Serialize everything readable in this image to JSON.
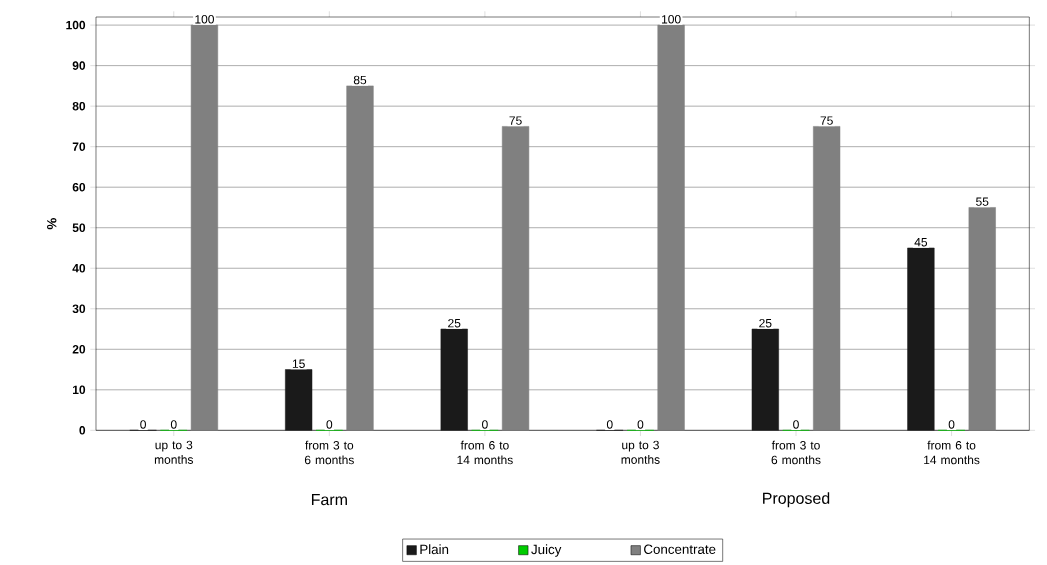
{
  "chart_data": {
    "type": "bar",
    "ylabel": "%",
    "categories": [
      "up to 3 months",
      "from 3 to 6 months",
      "from 6 to 14 months",
      "up to 3 months",
      "from 3 to 6 months",
      "from 6 to 14 months"
    ],
    "series": [
      {
        "name": "Plain",
        "color": "#1a1a1a",
        "values": [
          0,
          15,
          25,
          0,
          25,
          45
        ]
      },
      {
        "name": "Juicy",
        "color": "#00cc00",
        "values": [
          0,
          0,
          0,
          0,
          0,
          0
        ]
      },
      {
        "name": "Concentrate",
        "color": "#808080",
        "values": [
          100,
          85,
          75,
          100,
          75,
          55
        ]
      }
    ],
    "annotations": [
      "Farm",
      "Proposed"
    ],
    "ylim": [
      0,
      102
    ],
    "yticks": [
      0,
      10,
      20,
      30,
      40,
      50,
      60,
      70,
      80,
      90,
      100
    ],
    "grid": "y",
    "legend": "bottom",
    "data_labels": true
  }
}
